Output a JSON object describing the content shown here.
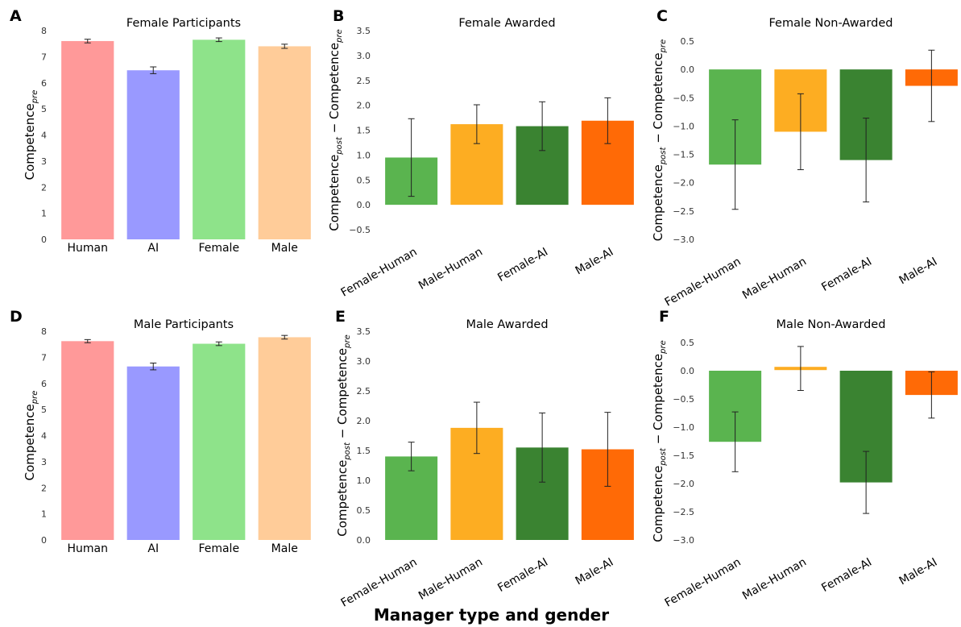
{
  "figure": {
    "xlabel": "Manager type and gender"
  },
  "chart_data": [
    {
      "panel": "A",
      "type": "bar",
      "title": "Female Participants",
      "ylabel": "Competence",
      "ylabel_sub": "pre",
      "categories": [
        "Human",
        "AI",
        "Female",
        "Male"
      ],
      "values": [
        7.6,
        6.48,
        7.65,
        7.4
      ],
      "errors": [
        0.07,
        0.13,
        0.07,
        0.08
      ],
      "colors": [
        "#ff9999",
        "#9999ff",
        "#8ee38a",
        "#ffcc99"
      ],
      "ylim": [
        0,
        8
      ],
      "yticks": [
        "0",
        "1",
        "2",
        "3",
        "4",
        "5",
        "6",
        "7",
        "8"
      ],
      "grid": false
    },
    {
      "panel": "B",
      "type": "bar",
      "title": "Female Awarded",
      "ylabel": "Competence",
      "ylabel_sub": "post",
      "ylabel_mid": " − Competence",
      "ylabel_sub2": "pre",
      "categories": [
        "Female-Human",
        "Male-Human",
        "Female-AI",
        "Male-AI"
      ],
      "values": [
        0.95,
        1.62,
        1.58,
        1.69
      ],
      "errors": [
        0.78,
        0.39,
        0.49,
        0.46
      ],
      "colors": [
        "#5ab44f",
        "#fdad22",
        "#3a8331",
        "#ff6a06"
      ],
      "ylim": [
        -0.5,
        3.5
      ],
      "yticks": [
        "−0.5",
        "0.0",
        "0.5",
        "1.0",
        "1.5",
        "2.0",
        "2.5",
        "3.0",
        "3.5"
      ],
      "grid": false
    },
    {
      "panel": "C",
      "type": "bar",
      "title": "Female Non-Awarded",
      "ylabel": "Competence",
      "ylabel_sub": "post",
      "ylabel_mid": " − Competence",
      "ylabel_sub2": "pre",
      "categories": [
        "Female-Human",
        "Male-Human",
        "Female-AI",
        "Male-AI"
      ],
      "values": [
        -1.68,
        -1.1,
        -1.6,
        -0.29
      ],
      "errors": [
        0.79,
        0.67,
        0.74,
        0.63
      ],
      "colors": [
        "#5ab44f",
        "#fdad22",
        "#3a8331",
        "#ff6a06"
      ],
      "ylim": [
        -3.0,
        0.5
      ],
      "yticks": [
        "−3.0",
        "−2.5",
        "−2.0",
        "−1.5",
        "−1.0",
        "−0.5",
        "0.0",
        "0.5"
      ],
      "grid": false
    },
    {
      "panel": "D",
      "type": "bar",
      "title": "Male Participants",
      "ylabel": "Competence",
      "ylabel_sub": "pre",
      "categories": [
        "Human",
        "AI",
        "Female",
        "Male"
      ],
      "values": [
        7.62,
        6.65,
        7.52,
        7.77
      ],
      "errors": [
        0.06,
        0.13,
        0.07,
        0.07
      ],
      "colors": [
        "#ff9999",
        "#9999ff",
        "#8ee38a",
        "#ffcc99"
      ],
      "ylim": [
        0,
        8
      ],
      "yticks": [
        "0",
        "1",
        "2",
        "3",
        "4",
        "5",
        "6",
        "7",
        "8"
      ],
      "grid": false
    },
    {
      "panel": "E",
      "type": "bar",
      "title": "Male Awarded",
      "ylabel": "Competence",
      "ylabel_sub": "post",
      "ylabel_mid": " − Competence",
      "ylabel_sub2": "pre",
      "categories": [
        "Female-Human",
        "Male-Human",
        "Female-AI",
        "Male-AI"
      ],
      "values": [
        1.4,
        1.88,
        1.55,
        1.52
      ],
      "errors": [
        0.24,
        0.43,
        0.58,
        0.62
      ],
      "colors": [
        "#5ab44f",
        "#fdad22",
        "#3a8331",
        "#ff6a06"
      ],
      "ylim": [
        0.0,
        3.5
      ],
      "yticks": [
        "0.0",
        "0.5",
        "1.0",
        "1.5",
        "2.0",
        "2.5",
        "3.0",
        "3.5"
      ],
      "grid": false
    },
    {
      "panel": "F",
      "type": "bar",
      "title": "Male Non-Awarded",
      "ylabel": "Competence",
      "ylabel_sub": "post",
      "ylabel_mid": " − Competence",
      "ylabel_sub2": "pre",
      "categories": [
        "Female-Human",
        "Male-Human",
        "Female-AI",
        "Male-AI"
      ],
      "values": [
        -1.26,
        0.04,
        -1.98,
        -0.43
      ],
      "errors": [
        0.53,
        0.39,
        0.55,
        0.41
      ],
      "colors": [
        "#5ab44f",
        "#fdad22",
        "#3a8331",
        "#ff6a06"
      ],
      "ylim": [
        -3.0,
        0.5
      ],
      "yticks": [
        "−3.0",
        "−2.5",
        "−2.0",
        "−1.5",
        "−1.0",
        "−0.5",
        "0.0",
        "0.5"
      ],
      "grid": false
    }
  ]
}
